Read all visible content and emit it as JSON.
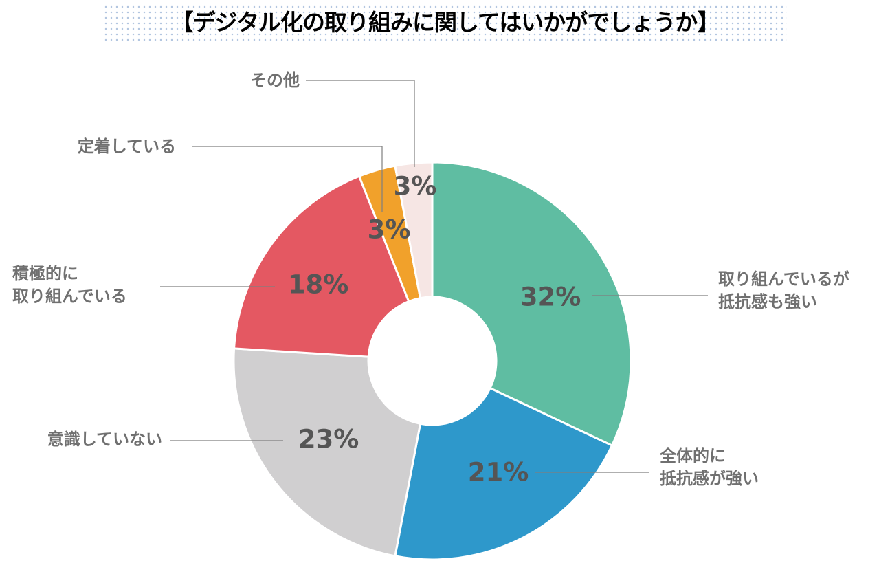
{
  "title": "【デジタル化の取り組みに関してはいかがでしょうか】",
  "chart_data": {
    "type": "pie",
    "donut": true,
    "title": "【デジタル化の取り組みに関してはいかがでしょうか】",
    "unit": "%",
    "slices": [
      {
        "label": [
          "取り組んでいるが",
          "抵抗感も強い"
        ],
        "value": 32,
        "value_label": "32%",
        "color": "#5fbda2"
      },
      {
        "label": [
          "全体的に",
          "抵抗感が強い"
        ],
        "value": 21,
        "value_label": "21%",
        "color": "#2e98cb"
      },
      {
        "label": [
          "意識していない"
        ],
        "value": 23,
        "value_label": "23%",
        "color": "#d0cfd0"
      },
      {
        "label": [
          "積極的に",
          "取り組んでいる"
        ],
        "value": 18,
        "value_label": "18%",
        "color": "#e45862"
      },
      {
        "label": [
          "定着している"
        ],
        "value": 3,
        "value_label": "3%",
        "color": "#f1a12b"
      },
      {
        "label": [
          "その他"
        ],
        "value": 3,
        "value_label": "3%",
        "color": "#f6e6e4"
      }
    ]
  }
}
